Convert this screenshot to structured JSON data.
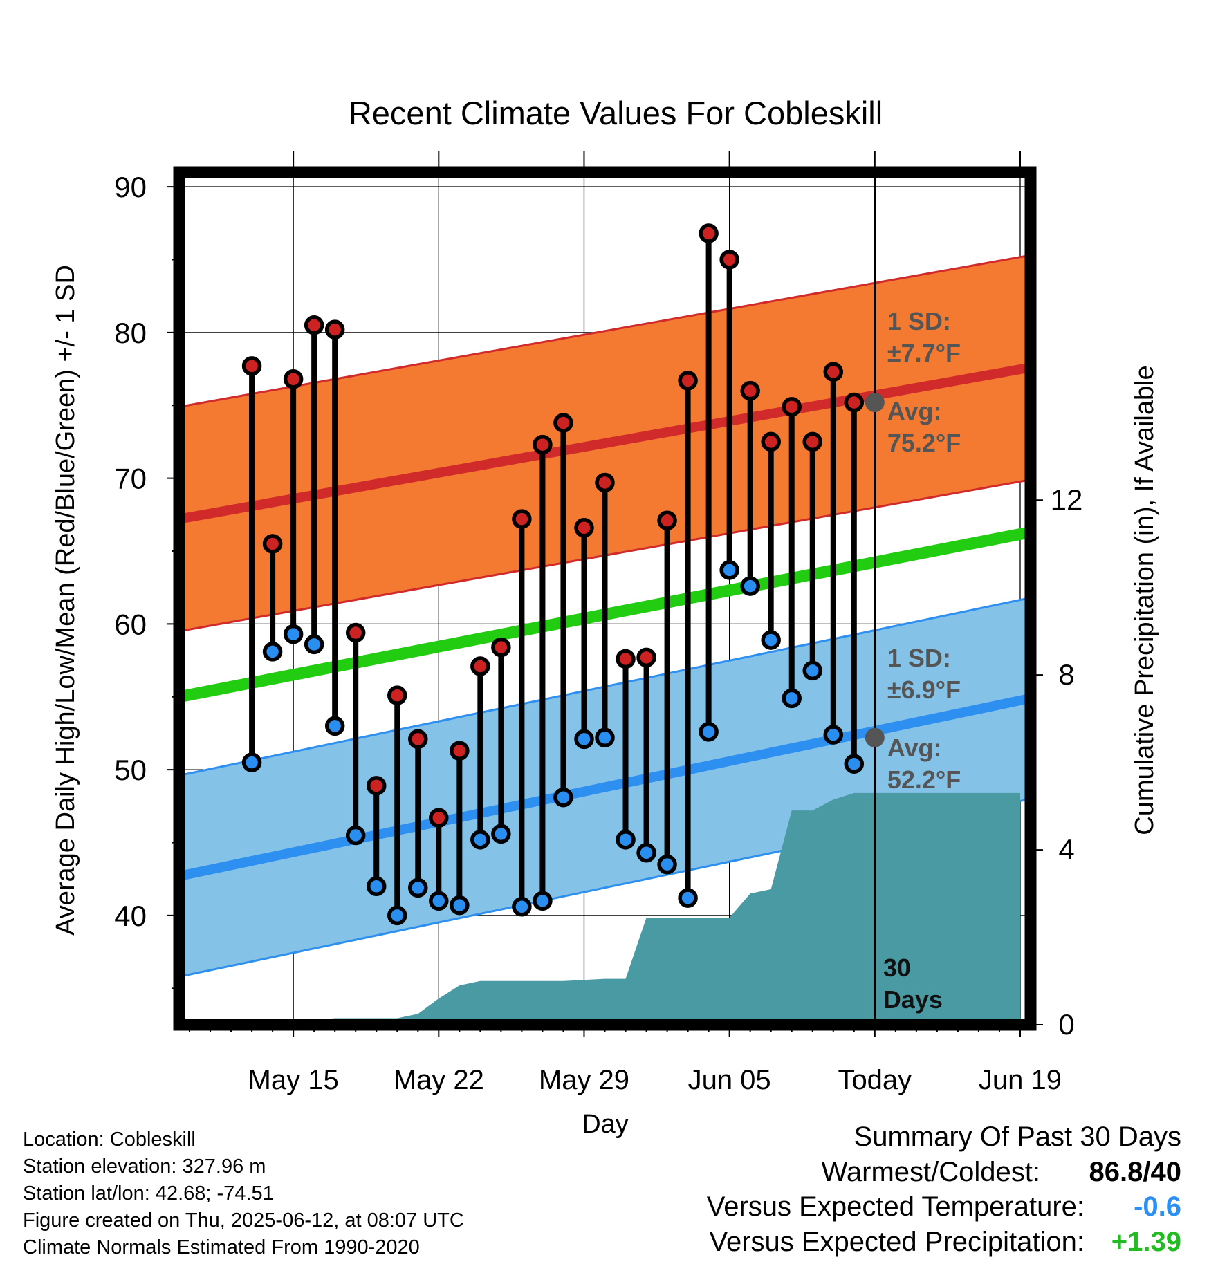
{
  "chart_data": {
    "type": "line",
    "title": "Recent Climate Values For Cobleskill",
    "xlabel": "Day",
    "ylabel": "Average Daily High/Low/Mean (Red/Blue/Green) +/- 1 SD",
    "y2label": "Cumulative Precipitation (in), If Available",
    "ylim": [
      32.5,
      91
    ],
    "y2lim": [
      0,
      19.5
    ],
    "y_ticks": [
      "40",
      "50",
      "60",
      "70",
      "80",
      "90"
    ],
    "y2_ticks": [
      "0",
      "4",
      "8",
      "12"
    ],
    "x_tick_labels": [
      "May 15",
      "May 22",
      "May 29",
      "Jun 05",
      "Today",
      "Jun 19"
    ],
    "x_range_days": [
      -33.5,
      7.5
    ],
    "grid": true,
    "daily_high": [
      77.7,
      65.5,
      76.8,
      80.5,
      80.2,
      59.4,
      48.9,
      55.1,
      52.1,
      46.7,
      51.3,
      57.1,
      58.4,
      67.2,
      72.3,
      73.8,
      66.6,
      69.7,
      57.6,
      57.7,
      67.1,
      76.7,
      86.8,
      85.0,
      76.0,
      72.5,
      74.9,
      72.5,
      77.3,
      75.2
    ],
    "daily_low": [
      50.5,
      58.1,
      59.3,
      58.6,
      53.0,
      45.5,
      42.0,
      40.0,
      41.9,
      41.0,
      40.7,
      45.2,
      45.6,
      40.6,
      41.0,
      48.1,
      52.1,
      52.2,
      45.2,
      44.3,
      43.5,
      41.2,
      52.6,
      63.7,
      62.6,
      58.9,
      54.9,
      56.8,
      52.4,
      50.4
    ],
    "normal_high": {
      "start": 67.2,
      "end": 77.6,
      "sd": 7.7
    },
    "normal_low": {
      "start": 42.7,
      "end": 54.9,
      "sd": 6.9
    },
    "normal_mean": {
      "start": 55.0,
      "end": 66.3
    },
    "precip_cumulative": [
      [
        -30.0,
        0.0
      ],
      [
        -28.0,
        0.03
      ],
      [
        -27.0,
        0.1
      ],
      [
        -26.0,
        0.15
      ],
      [
        -23.0,
        0.15
      ],
      [
        -22.0,
        0.25
      ],
      [
        -21.0,
        0.6
      ],
      [
        -20.0,
        0.9
      ],
      [
        -19.0,
        1.0
      ],
      [
        -15.0,
        1.0
      ],
      [
        -13.0,
        1.05
      ],
      [
        -12.0,
        1.05
      ],
      [
        -11.0,
        2.45
      ],
      [
        -8.0,
        2.45
      ],
      [
        -7.0,
        2.45
      ],
      [
        -6.0,
        3.0
      ],
      [
        -5.0,
        3.1
      ],
      [
        -4.0,
        4.9
      ],
      [
        -3.0,
        4.9
      ],
      [
        -2.0,
        5.15
      ],
      [
        -1.0,
        5.3
      ],
      [
        0.0,
        5.3
      ],
      [
        7.0,
        5.3
      ]
    ],
    "annotations": {
      "high_sd": [
        "1 SD:",
        "±7.7°F"
      ],
      "high_avg": [
        "Avg:",
        "75.2°F"
      ],
      "low_sd": [
        "1 SD:",
        "±6.9°F"
      ],
      "low_avg": [
        "Avg:",
        "52.2°F"
      ],
      "window": [
        "30",
        "Days"
      ]
    }
  },
  "station_info": [
    "Location: Cobleskill",
    "Station elevation: 327.96 m",
    "Station lat/lon: 42.68; -74.51",
    "Figure created on Thu, 2025-06-12, at 08:07 UTC",
    "Climate Normals Estimated From 1990-2020"
  ],
  "summary": {
    "title": "Summary Of Past 30 Days",
    "warmest_coldest_label": "Warmest/Coldest:",
    "warmest_coldest_value": "86.8/40",
    "temp_label": "Versus Expected Temperature:",
    "temp_value": "-0.6",
    "precip_label": "Versus Expected Precipitation:",
    "precip_value": "+1.39"
  },
  "colors": {
    "high_band": "#f47a32",
    "high_line": "#d12a2a",
    "low_band": "#84c2e8",
    "low_line": "#2d8ff0",
    "mean_line": "#22cc11",
    "precip": "#4a9aa4",
    "high_dot": "#cc2222",
    "low_dot": "#2a8ef0",
    "annotation": "#555555",
    "temp_anomaly": "#2d8ff0",
    "precip_anomaly": "#22bb22"
  }
}
